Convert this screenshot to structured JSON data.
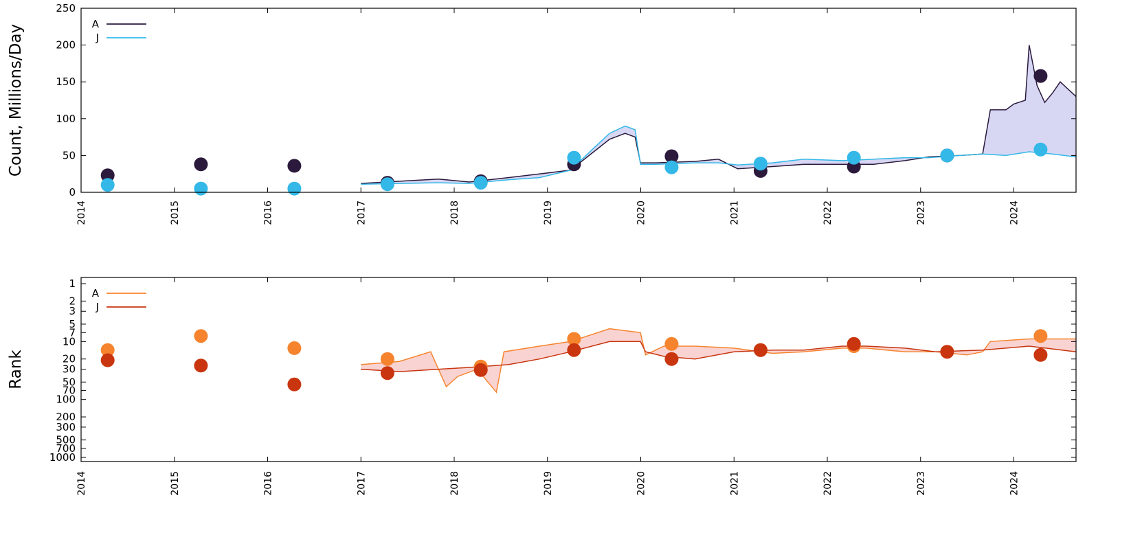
{
  "chart_data": [
    {
      "type": "line",
      "ylabel": "Count, Millions/Day",
      "xlim": [
        "2014-01-01",
        "2024-09-01"
      ],
      "ylim": [
        0,
        250
      ],
      "yticks": [
        0,
        50,
        100,
        150,
        200,
        250
      ],
      "xticks": [
        "2014",
        "2015",
        "2016",
        "2017",
        "2018",
        "2019",
        "2020",
        "2021",
        "2022",
        "2023",
        "2024"
      ],
      "grid": false,
      "legend_position": "top-left",
      "band_color": "#c9caf0",
      "series": [
        {
          "name": "A",
          "color": "#2b1a3c",
          "line": [
            [
              "2017-01-01",
              12
            ],
            [
              "2017-06-01",
              15
            ],
            [
              "2017-11-01",
              18
            ],
            [
              "2018-03-01",
              14
            ],
            [
              "2018-08-01",
              20
            ],
            [
              "2018-12-01",
              25
            ],
            [
              "2019-04-01",
              30
            ],
            [
              "2019-07-01",
              55
            ],
            [
              "2019-09-01",
              72
            ],
            [
              "2019-11-01",
              80
            ],
            [
              "2019-12-10",
              75
            ],
            [
              "2019-12-31",
              40
            ],
            [
              "2020-03-01",
              40
            ],
            [
              "2020-08-01",
              42
            ],
            [
              "2020-11-01",
              45
            ],
            [
              "2021-01-15",
              32
            ],
            [
              "2021-06-01",
              35
            ],
            [
              "2021-10-01",
              38
            ],
            [
              "2022-03-01",
              38
            ],
            [
              "2022-07-01",
              38
            ],
            [
              "2022-11-01",
              43
            ],
            [
              "2023-02-01",
              48
            ],
            [
              "2023-06-01",
              50
            ],
            [
              "2023-09-01",
              52
            ],
            [
              "2023-10-01",
              112
            ],
            [
              "2023-12-01",
              112
            ],
            [
              "2024-01-01",
              120
            ],
            [
              "2024-02-15",
              125
            ],
            [
              "2024-03-01",
              200
            ],
            [
              "2024-04-01",
              145
            ],
            [
              "2024-05-01",
              122
            ],
            [
              "2024-06-01",
              135
            ],
            [
              "2024-07-01",
              150
            ],
            [
              "2024-09-01",
              130
            ]
          ],
          "points": [
            [
              "2014-04-15",
              23
            ],
            [
              "2015-04-15",
              38
            ],
            [
              "2016-04-15",
              36
            ],
            [
              "2017-04-15",
              13
            ],
            [
              "2018-04-15",
              15
            ],
            [
              "2019-04-15",
              38
            ],
            [
              "2020-05-01",
              49
            ],
            [
              "2021-04-15",
              29
            ],
            [
              "2022-04-15",
              35
            ],
            [
              "2023-04-15",
              50
            ],
            [
              "2024-04-15",
              158
            ]
          ]
        },
        {
          "name": "J",
          "color": "#33b8e8",
          "line": [
            [
              "2017-01-01",
              11
            ],
            [
              "2017-06-01",
              12
            ],
            [
              "2017-11-01",
              13
            ],
            [
              "2018-03-01",
              12
            ],
            [
              "2018-08-01",
              17
            ],
            [
              "2018-12-01",
              20
            ],
            [
              "2019-04-01",
              30
            ],
            [
              "2019-07-01",
              60
            ],
            [
              "2019-09-01",
              80
            ],
            [
              "2019-11-01",
              90
            ],
            [
              "2019-12-10",
              85
            ],
            [
              "2019-12-31",
              38
            ],
            [
              "2020-03-01",
              38
            ],
            [
              "2020-08-01",
              40
            ],
            [
              "2020-11-01",
              40
            ],
            [
              "2021-01-15",
              37
            ],
            [
              "2021-06-01",
              40
            ],
            [
              "2021-10-01",
              45
            ],
            [
              "2022-03-01",
              43
            ],
            [
              "2022-07-01",
              45
            ],
            [
              "2022-11-01",
              47
            ],
            [
              "2023-02-01",
              47
            ],
            [
              "2023-06-01",
              50
            ],
            [
              "2023-09-01",
              52
            ],
            [
              "2023-12-01",
              50
            ],
            [
              "2024-03-01",
              55
            ],
            [
              "2024-06-01",
              52
            ],
            [
              "2024-09-01",
              48
            ]
          ],
          "points": [
            [
              "2014-04-15",
              10
            ],
            [
              "2015-04-15",
              5
            ],
            [
              "2016-04-15",
              5
            ],
            [
              "2017-04-15",
              11
            ],
            [
              "2018-04-15",
              13
            ],
            [
              "2019-04-15",
              47
            ],
            [
              "2020-05-01",
              34
            ],
            [
              "2021-04-15",
              39
            ],
            [
              "2022-04-15",
              47
            ],
            [
              "2023-04-15",
              50
            ],
            [
              "2024-04-15",
              58
            ]
          ]
        }
      ]
    },
    {
      "type": "line",
      "ylabel": "Rank",
      "yscale": "log-reversed",
      "xlim": [
        "2014-01-01",
        "2024-09-01"
      ],
      "ylim": [
        1,
        1000
      ],
      "yticks": [
        1,
        2,
        3,
        5,
        7,
        10,
        20,
        30,
        50,
        70,
        100,
        200,
        300,
        500,
        700,
        1000
      ],
      "xticks": [
        "2014",
        "2015",
        "2016",
        "2017",
        "2018",
        "2019",
        "2020",
        "2021",
        "2022",
        "2023",
        "2024"
      ],
      "grid": false,
      "legend_position": "top-left",
      "band_color": "#f7c4c1",
      "series": [
        {
          "name": "A",
          "color": "#f6842e",
          "line": [
            [
              "2017-01-01",
              25
            ],
            [
              "2017-06-01",
              22
            ],
            [
              "2017-10-01",
              15
            ],
            [
              "2017-12-01",
              60
            ],
            [
              "2018-01-15",
              40
            ],
            [
              "2018-04-01",
              30
            ],
            [
              "2018-06-15",
              75
            ],
            [
              "2018-07-15",
              15
            ],
            [
              "2018-12-01",
              12
            ],
            [
              "2019-04-01",
              10
            ],
            [
              "2019-09-01",
              6
            ],
            [
              "2019-12-31",
              7
            ],
            [
              "2020-01-20",
              17
            ],
            [
              "2020-04-01",
              12
            ],
            [
              "2020-08-01",
              12
            ],
            [
              "2021-01-01",
              13
            ],
            [
              "2021-06-01",
              16
            ],
            [
              "2021-10-01",
              15
            ],
            [
              "2022-03-01",
              13
            ],
            [
              "2022-06-01",
              13
            ],
            [
              "2022-11-01",
              15
            ],
            [
              "2023-03-01",
              15
            ],
            [
              "2023-07-01",
              17
            ],
            [
              "2023-09-01",
              15
            ],
            [
              "2023-10-01",
              10
            ],
            [
              "2024-03-01",
              9
            ],
            [
              "2024-09-01",
              9
            ]
          ],
          "points": [
            [
              "2014-04-15",
              14
            ],
            [
              "2015-04-15",
              8
            ],
            [
              "2016-04-15",
              13
            ],
            [
              "2017-04-15",
              20
            ],
            [
              "2018-04-15",
              27
            ],
            [
              "2019-04-15",
              9
            ],
            [
              "2020-05-01",
              11
            ],
            [
              "2021-04-15",
              14
            ],
            [
              "2022-04-15",
              12
            ],
            [
              "2023-04-15",
              15
            ],
            [
              "2024-04-15",
              8
            ]
          ]
        },
        {
          "name": "J",
          "color": "#c8350e",
          "line": [
            [
              "2017-01-01",
              30
            ],
            [
              "2017-06-01",
              33
            ],
            [
              "2017-11-01",
              30
            ],
            [
              "2018-03-01",
              28
            ],
            [
              "2018-08-01",
              25
            ],
            [
              "2018-12-01",
              20
            ],
            [
              "2019-04-01",
              15
            ],
            [
              "2019-09-01",
              10
            ],
            [
              "2019-12-31",
              10
            ],
            [
              "2020-01-20",
              15
            ],
            [
              "2020-04-01",
              18
            ],
            [
              "2020-08-01",
              20
            ],
            [
              "2021-01-01",
              15
            ],
            [
              "2021-06-01",
              14
            ],
            [
              "2021-10-01",
              14
            ],
            [
              "2022-03-01",
              12
            ],
            [
              "2022-06-01",
              12
            ],
            [
              "2022-11-01",
              13
            ],
            [
              "2023-03-01",
              15
            ],
            [
              "2023-09-01",
              14
            ],
            [
              "2024-03-01",
              12
            ],
            [
              "2024-09-01",
              15
            ]
          ],
          "points": [
            [
              "2014-04-15",
              21
            ],
            [
              "2015-04-15",
              26
            ],
            [
              "2016-04-15",
              55
            ],
            [
              "2017-04-15",
              35
            ],
            [
              "2018-04-15",
              31
            ],
            [
              "2019-04-15",
              14
            ],
            [
              "2020-05-01",
              20
            ],
            [
              "2021-04-15",
              14
            ],
            [
              "2022-04-15",
              11
            ],
            [
              "2023-04-15",
              15
            ],
            [
              "2024-04-15",
              17
            ]
          ]
        }
      ]
    }
  ]
}
